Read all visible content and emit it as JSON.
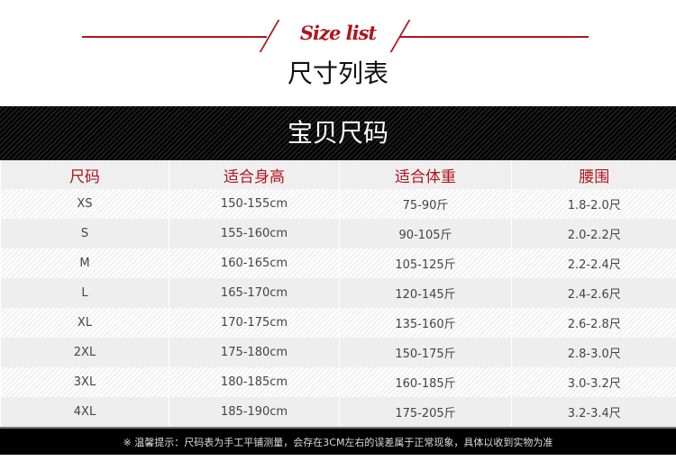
{
  "header": {
    "title_en": "Size list",
    "title_cn": "尺寸列表"
  },
  "band": {
    "title": "宝贝尺码"
  },
  "colors": {
    "accent": "#b0151c"
  },
  "table": {
    "headers": [
      "尺码",
      "适合身高",
      "适合体重",
      "腰围"
    ],
    "rows": [
      [
        "XS",
        "150-155cm",
        "75-90斤",
        "1.8-2.0尺"
      ],
      [
        "S",
        "155-160cm",
        "90-105斤",
        "2.0-2.2尺"
      ],
      [
        "M",
        "160-165cm",
        "105-125斤",
        "2.2-2.4尺"
      ],
      [
        "L",
        "165-170cm",
        "120-145斤",
        "2.4-2.6尺"
      ],
      [
        "XL",
        "170-175cm",
        "135-160斤",
        "2.6-2.8尺"
      ],
      [
        "2XL",
        "175-180cm",
        "150-175斤",
        "2.8-3.0尺"
      ],
      [
        "3XL",
        "180-185cm",
        "160-185斤",
        "3.0-3.2尺"
      ],
      [
        "4XL",
        "185-190cm",
        "175-205斤",
        "3.2-3.4尺"
      ]
    ]
  },
  "footer": {
    "note": "※ 温馨提示：尺码表为手工平铺测量，会存在3CM左右的误差属于正常现象，具体以收到实物为准"
  }
}
